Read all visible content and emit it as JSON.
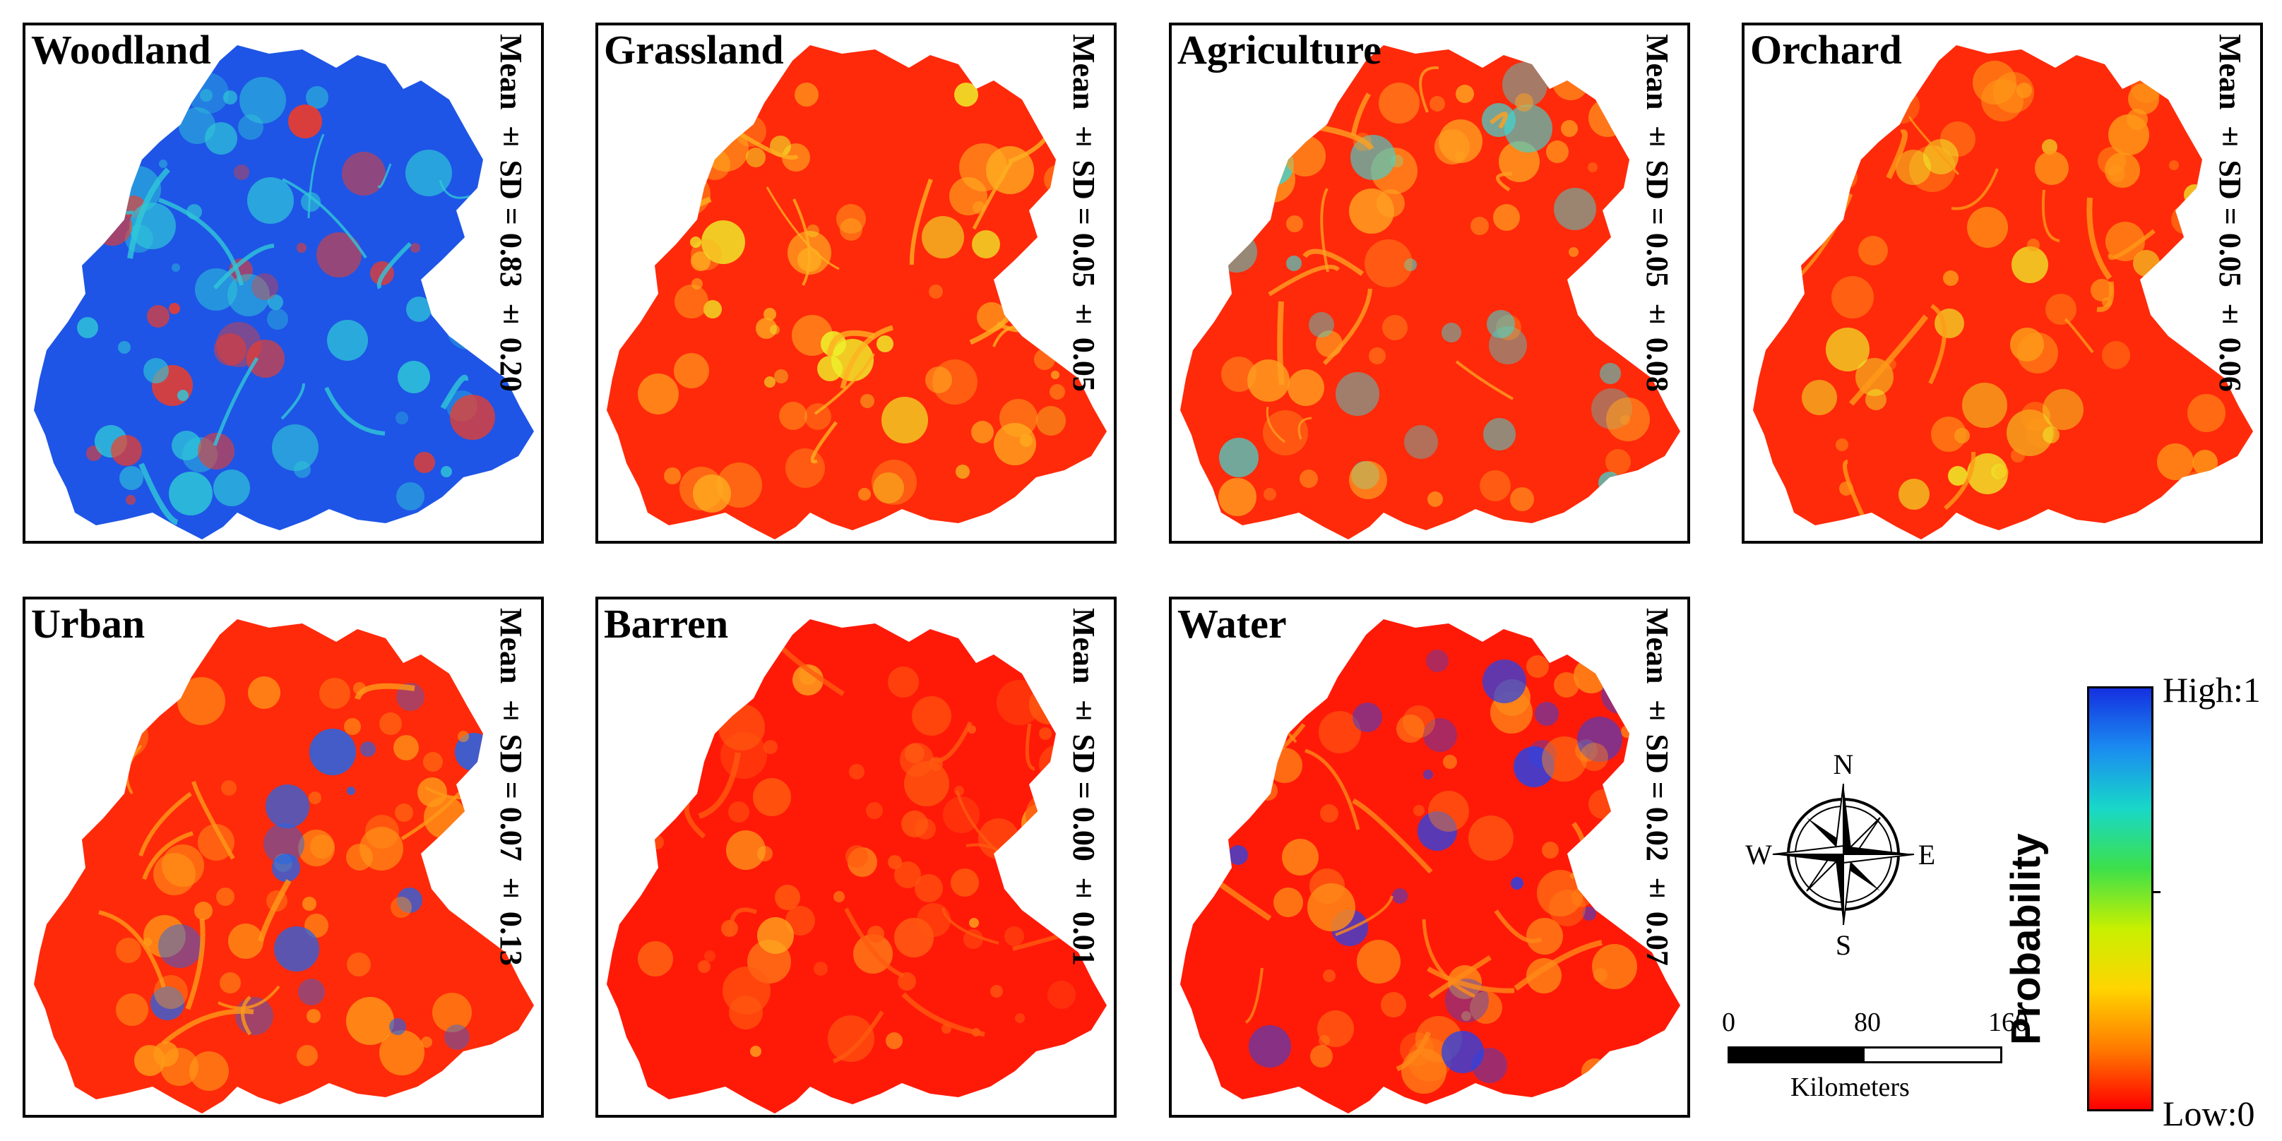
{
  "panels": [
    {
      "title": "Woodland",
      "stat": "Mean ± SD = 0.83 ± 0.20",
      "base": "#1e55e6",
      "accent": "#2fc8d8",
      "hot": "#ff3a1a"
    },
    {
      "title": "Grassland",
      "stat": "Mean ± SD = 0.05 ± 0.05",
      "base": "#ff2a0a",
      "accent": "#ffb020",
      "hot": "#eef22a"
    },
    {
      "title": "Agriculture",
      "stat": "Mean ± SD = 0.05 ± 0.08",
      "base": "#ff2a0a",
      "accent": "#ffa020",
      "hot": "#3fd6d0"
    },
    {
      "title": "Orchard",
      "stat": "Mean ± SD = 0.05 ± 0.06",
      "base": "#ff2a0a",
      "accent": "#ff9a18",
      "hot": "#eef22a"
    },
    {
      "title": "Urban",
      "stat": "Mean ± SD = 0.07 ± 0.13",
      "base": "#ff2a0a",
      "accent": "#ff9a18",
      "hot": "#1e66ee"
    },
    {
      "title": "Barren",
      "stat": "Mean ± SD = 0.00 ± 0.01",
      "base": "#ff1a08",
      "accent": "#ff5a10",
      "hot": "#ffb020"
    },
    {
      "title": "Water",
      "stat": "Mean ± SD = 0.02 ± 0.07",
      "base": "#ff1a08",
      "accent": "#ff8a18",
      "hot": "#2244ee"
    }
  ],
  "compass": {
    "north": "N",
    "south": "S",
    "east": "E",
    "west": "W"
  },
  "scalebar": {
    "ticks": [
      "0",
      "80",
      "160"
    ],
    "unit": "Kilometers"
  },
  "legend": {
    "title": "Probability",
    "high": "High:1",
    "low": "Low:0",
    "colors": [
      "#ff0000",
      "#ff7a00",
      "#ffd400",
      "#c8f000",
      "#3de04a",
      "#18d8c8",
      "#1a8cf0",
      "#1530e0"
    ]
  }
}
